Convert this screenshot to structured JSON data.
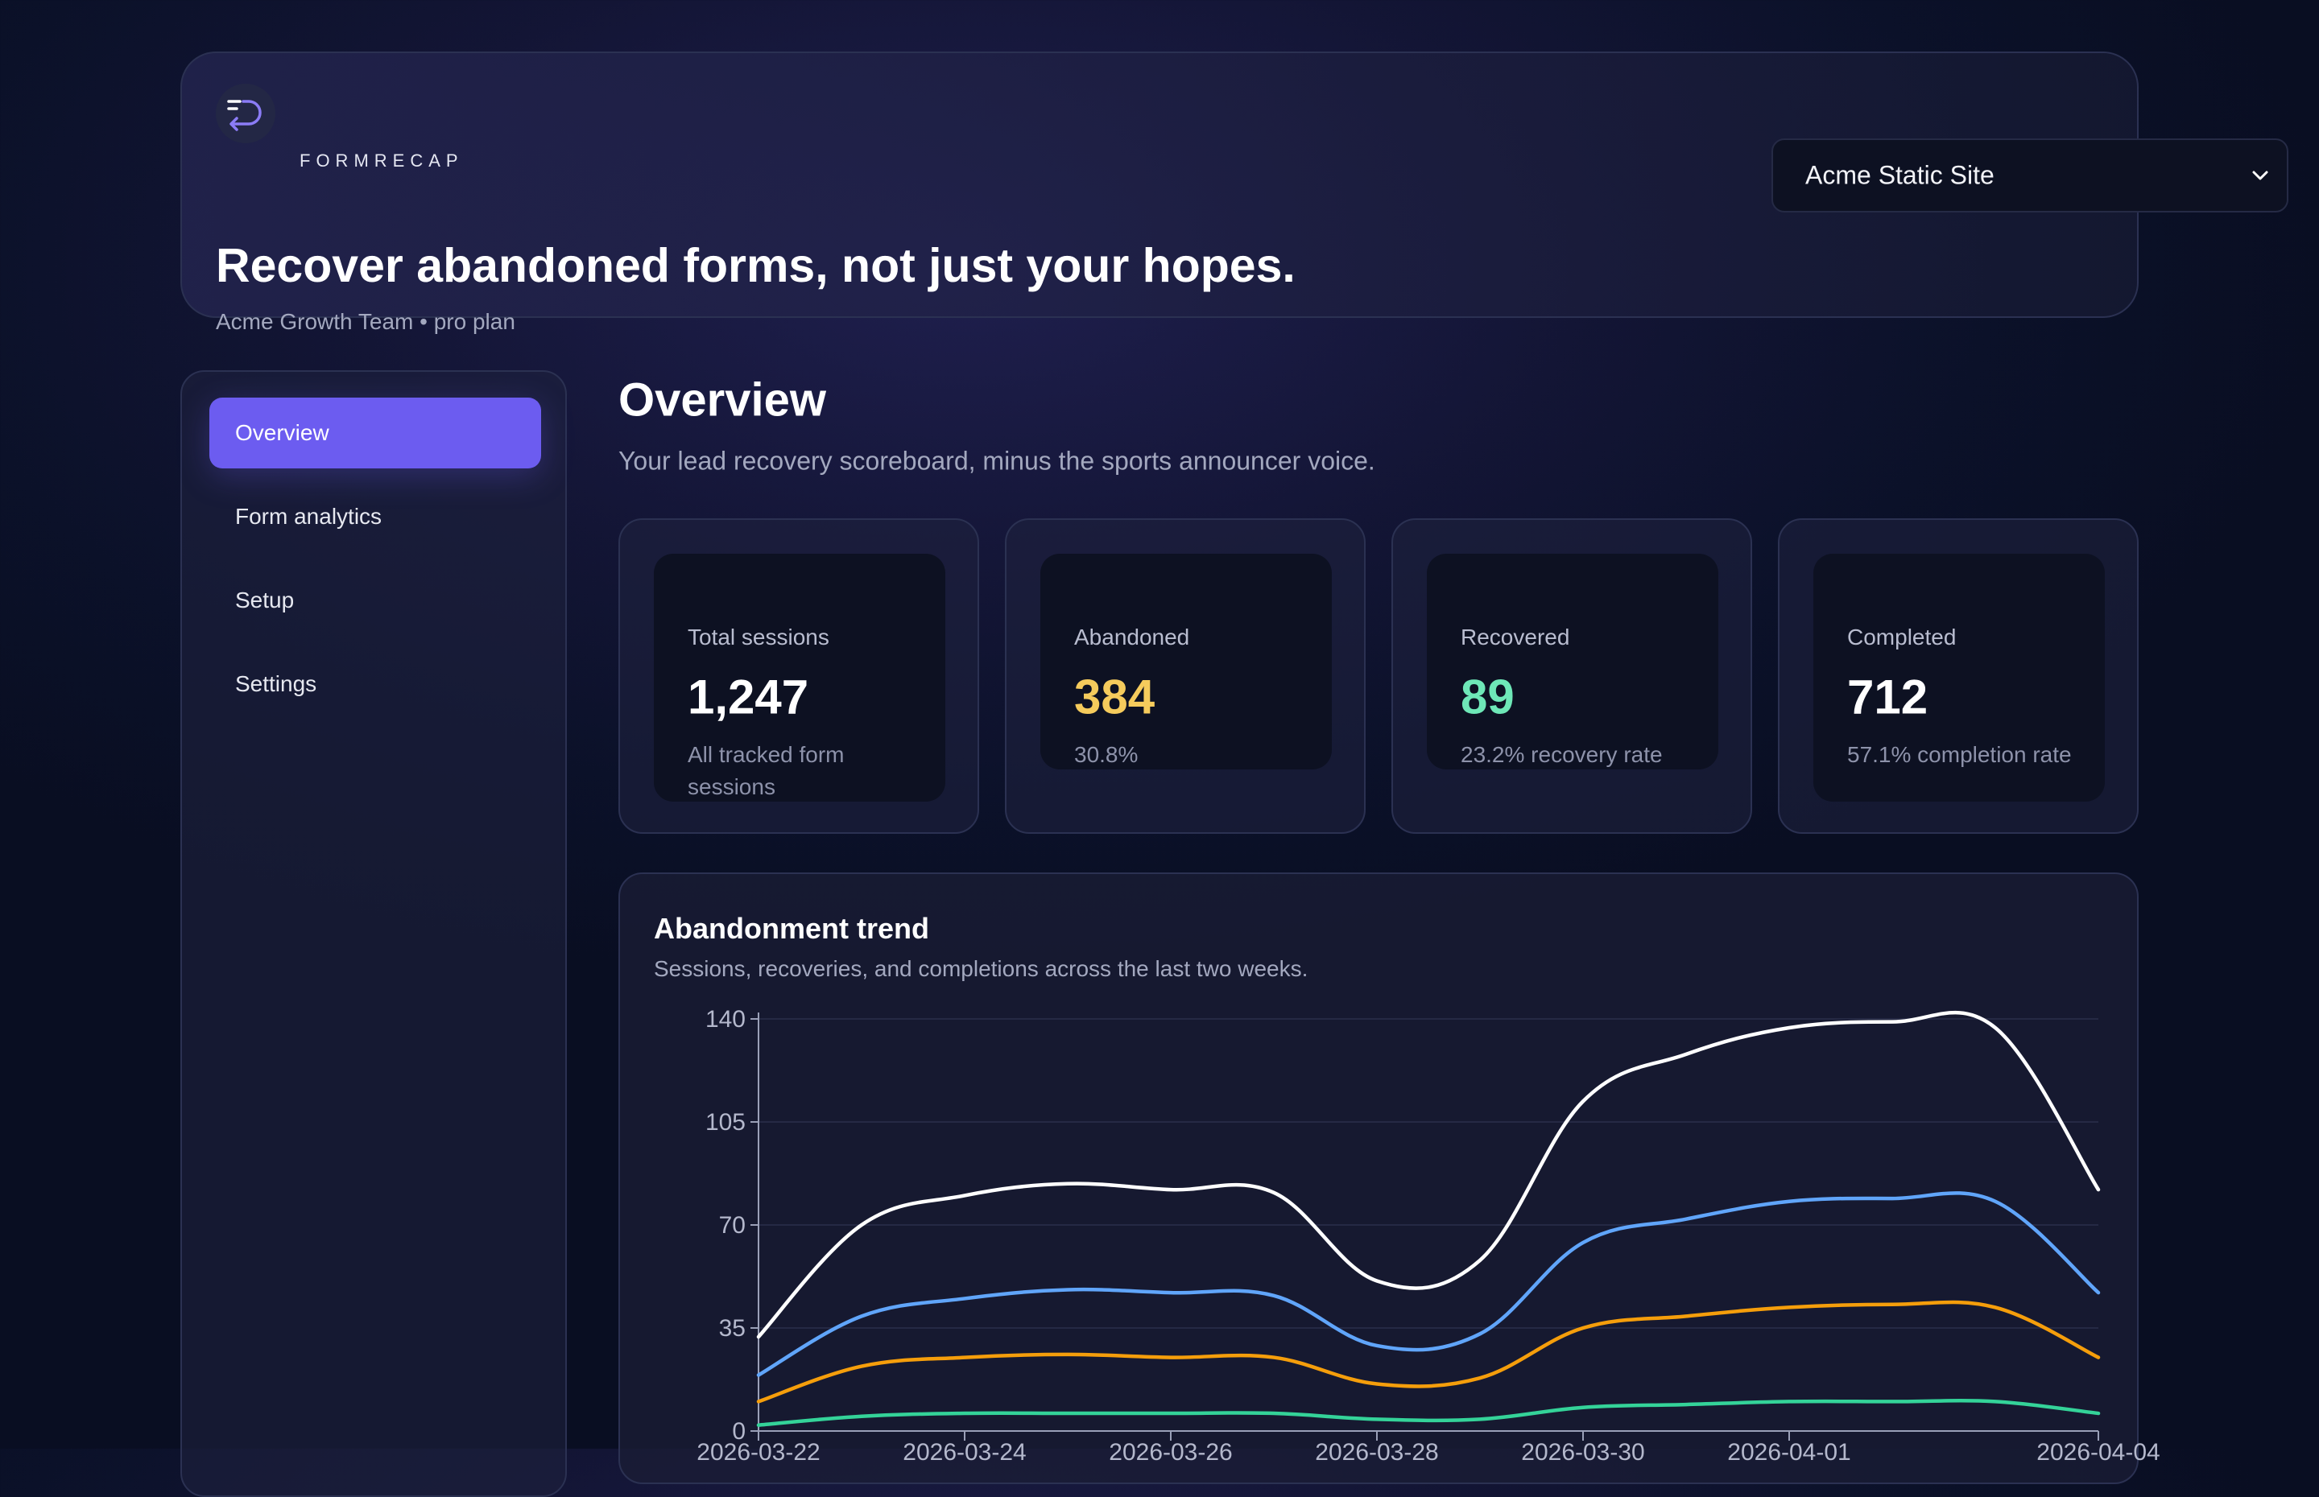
{
  "header": {
    "brand": "FORMRECAP",
    "title": "Recover abandoned forms, not just your hopes.",
    "team": "Acme Growth Team • pro plan",
    "site_select": {
      "value": "Acme Static Site"
    }
  },
  "sidebar": {
    "items": [
      {
        "label": "Overview",
        "active": true
      },
      {
        "label": "Form analytics",
        "active": false
      },
      {
        "label": "Setup",
        "active": false
      },
      {
        "label": "Settings",
        "active": false
      }
    ]
  },
  "page": {
    "title": "Overview",
    "subtitle": "Your lead recovery scoreboard, minus the sports announcer voice."
  },
  "stats": [
    {
      "label": "Total sessions",
      "value": "1,247",
      "note": "All tracked form sessions",
      "color": "#ffffff"
    },
    {
      "label": "Abandoned",
      "value": "384",
      "note": "30.8%",
      "color": "#f5cb5c"
    },
    {
      "label": "Recovered",
      "value": "89",
      "note": "23.2% recovery rate",
      "color": "#6ee7b7"
    },
    {
      "label": "Completed",
      "value": "712",
      "note": "57.1% completion rate",
      "color": "#ffffff"
    }
  ],
  "chart": {
    "title": "Abandonment trend",
    "subtitle": "Sessions, recoveries, and completions across the last two weeks."
  },
  "chart_data": {
    "type": "line",
    "x": [
      "2026-03-22",
      "2026-03-23",
      "2026-03-24",
      "2026-03-25",
      "2026-03-26",
      "2026-03-27",
      "2026-03-28",
      "2026-03-29",
      "2026-03-30",
      "2026-03-31",
      "2026-04-01",
      "2026-04-02",
      "2026-04-03",
      "2026-04-04"
    ],
    "x_tick_labels": [
      "2026-03-22",
      "2026-03-24",
      "2026-03-26",
      "2026-03-28",
      "2026-03-30",
      "2026-04-01",
      "2026-04-04"
    ],
    "y_ticks": [
      0,
      35,
      70,
      105,
      140
    ],
    "ylim": [
      0,
      140
    ],
    "grid": true,
    "series": [
      {
        "color": "#ffffff",
        "values": [
          32,
          70,
          80,
          84,
          82,
          81,
          51,
          58,
          112,
          128,
          137,
          139,
          137,
          82
        ]
      },
      {
        "color": "#60a5fa",
        "values": [
          19,
          39,
          45,
          48,
          47,
          46,
          29,
          33,
          64,
          72,
          78,
          79,
          78,
          47
        ]
      },
      {
        "color": "#f59e0b",
        "values": [
          10,
          22,
          25,
          26,
          25,
          25,
          16,
          18,
          35,
          39,
          42,
          43,
          42,
          25
        ]
      },
      {
        "color": "#34d399",
        "values": [
          2,
          5,
          6,
          6,
          6,
          6,
          4,
          4,
          8,
          9,
          10,
          10,
          10,
          6
        ]
      }
    ]
  }
}
